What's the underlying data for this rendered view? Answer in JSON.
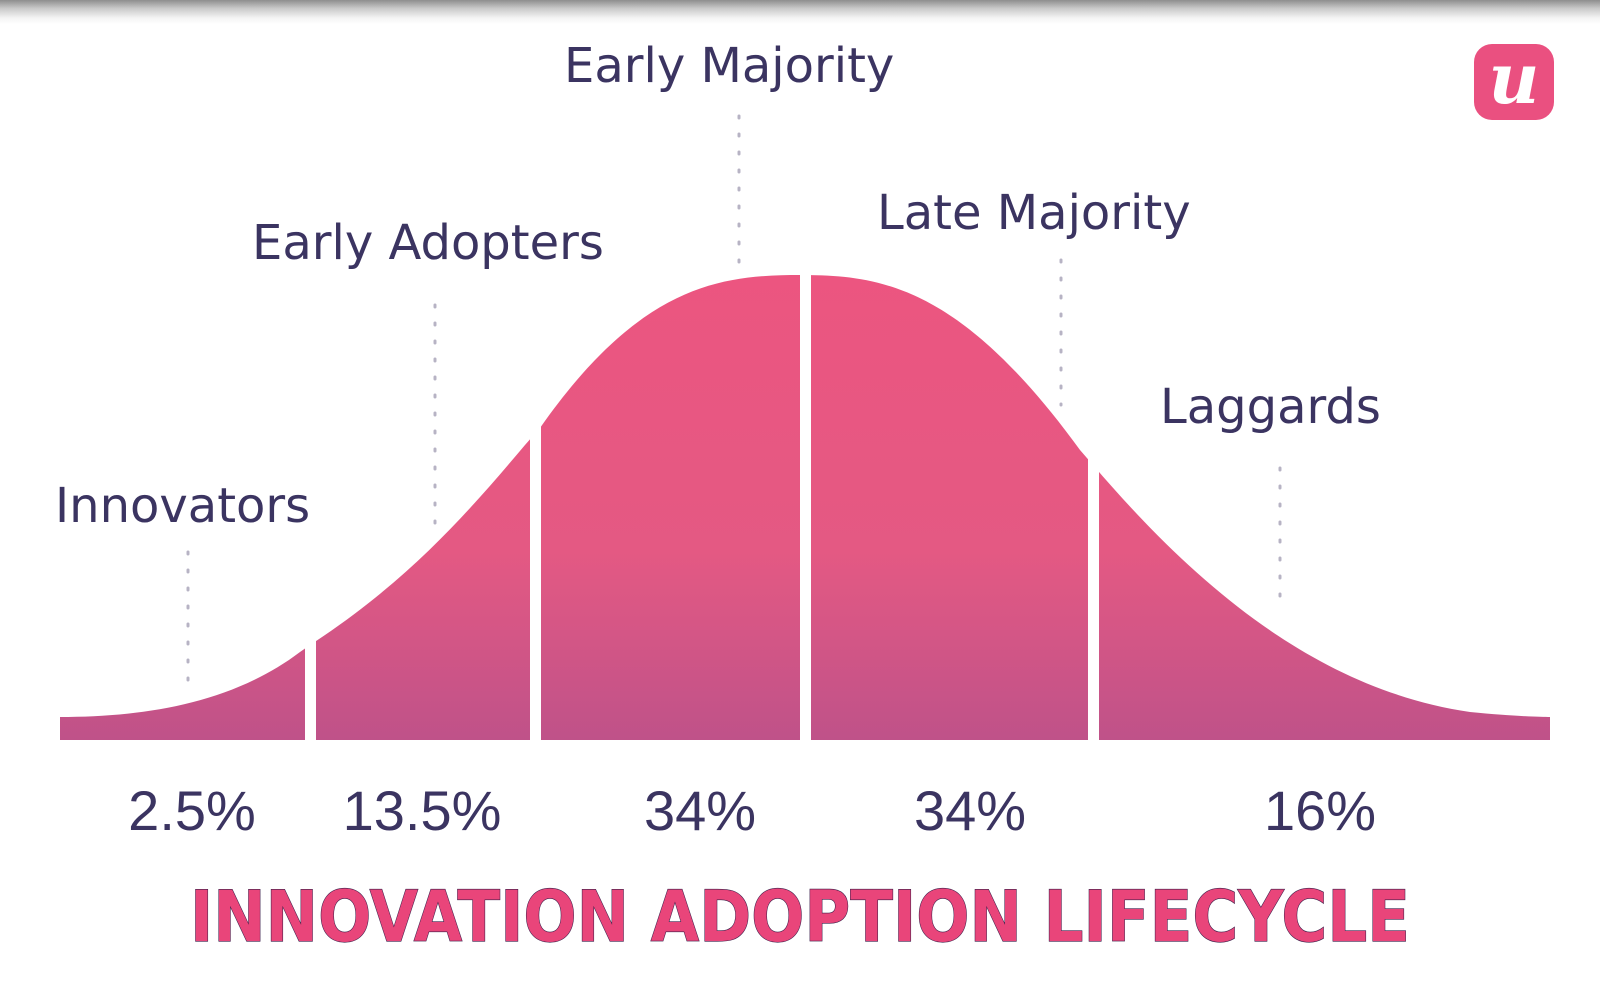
{
  "title": "INNOVATION ADOPTION LIFECYCLE",
  "logo": {
    "letter": "u",
    "color": "#ea5080"
  },
  "colors": {
    "curve_top": "#ec5580",
    "curve_bottom": "#bf5289",
    "text": "#3b3461",
    "title": "#e9457a"
  },
  "segments": [
    {
      "label": "Innovators",
      "percent": "2.5%"
    },
    {
      "label": "Early Adopters",
      "percent": "13.5%"
    },
    {
      "label": "Early Majority",
      "percent": "34%"
    },
    {
      "label": "Late Majority",
      "percent": "34%"
    },
    {
      "label": "Laggards",
      "percent": "16%"
    }
  ]
}
